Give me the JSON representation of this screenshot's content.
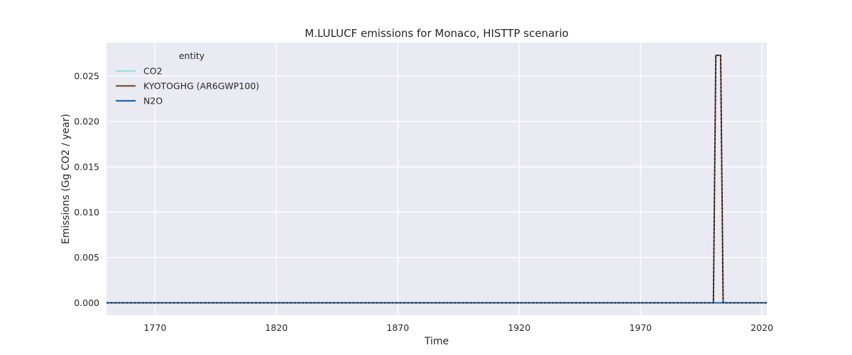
{
  "chart_data": {
    "type": "line",
    "title": "M.LULUCF emissions for Monaco, HISTTP scenario",
    "xlabel": "Time",
    "ylabel": "Emissions (Gg CO2 / year)",
    "xlim": [
      1750,
      2022
    ],
    "ylim": [
      -0.00137,
      0.0287
    ],
    "xticks": [
      1770,
      1820,
      1870,
      1920,
      1970,
      2020
    ],
    "yticks": [
      0.0,
      0.005,
      0.01,
      0.015,
      0.02,
      0.025
    ],
    "ytick_labels": [
      "0.000",
      "0.005",
      "0.010",
      "0.015",
      "0.020",
      "0.025"
    ],
    "grid": true,
    "legend": {
      "title": "entity",
      "placement": "top-left",
      "entries": [
        "CO2",
        "KYOTOGHG (AR6GWP100)",
        "N2O"
      ]
    },
    "series": [
      {
        "name": "CO2",
        "color": "#99dcee",
        "dashed": false,
        "x": [
          1750,
          2000,
          2001,
          2002,
          2003,
          2004,
          2022
        ],
        "y": [
          0,
          0,
          0.0273,
          0.0273,
          0.0273,
          0,
          0
        ]
      },
      {
        "name": "KYOTOGHG (AR6GWP100)",
        "color": "#7f4f3f",
        "dashed": false,
        "x": [
          1750,
          2000,
          2001,
          2002,
          2003,
          2004,
          2022
        ],
        "y": [
          0,
          0,
          0.0273,
          0.0273,
          0.0273,
          0,
          0
        ]
      },
      {
        "name": "N2O",
        "color": "#2166ac",
        "dashed": false,
        "x": [
          1750,
          2022
        ],
        "y": [
          0,
          0
        ]
      },
      {
        "name": "",
        "color": "#111111",
        "dashed": true,
        "x": [
          1750,
          2000,
          2001,
          2002,
          2003,
          2004,
          2022
        ],
        "y": [
          0,
          0,
          0.0273,
          0.0273,
          0.0273,
          0,
          0
        ]
      }
    ]
  }
}
